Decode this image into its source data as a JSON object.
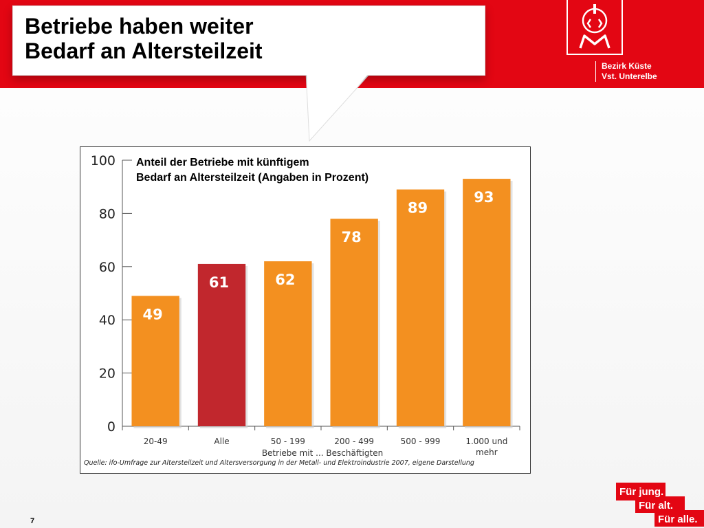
{
  "slide": {
    "title_line1": "Betriebe haben weiter",
    "title_line2": "Bedarf an Altersteilzeit",
    "org_line1": "Bezirk Küste",
    "org_line2": "Vst. Unterelbe",
    "logo_letters": "IGM",
    "page_number": "7",
    "slogan": [
      "Für jung.",
      "Für alt.",
      "Für alle."
    ]
  },
  "colors": {
    "brand_red": "#e30613",
    "bar_orange": "#f39020",
    "bar_highlight": "#c1272d"
  },
  "chart_data": {
    "type": "bar",
    "title_line1": "Anteil der Betriebe mit künftigem",
    "title_line2": "Bedarf an Altersteilzeit (Angaben in Prozent)",
    "categories": [
      [
        "20-49"
      ],
      [
        "Alle"
      ],
      [
        "50 - 199"
      ],
      [
        "200 - 499"
      ],
      [
        "500 - 999"
      ],
      [
        "1.000 und",
        "mehr"
      ]
    ],
    "values": [
      49,
      61,
      62,
      78,
      89,
      93
    ],
    "highlight_index": 1,
    "xlabel": "Betriebe mit ... Beschäftigten",
    "ylabel": "",
    "ylim": [
      0,
      100
    ],
    "yticks": [
      0,
      20,
      40,
      60,
      80,
      100
    ],
    "source": "Quelle: ifo-Umfrage zur Altersteilzeit und Altersversorgung in der Metall- und Elektroindustrie 2007, eigene Darstellung"
  }
}
